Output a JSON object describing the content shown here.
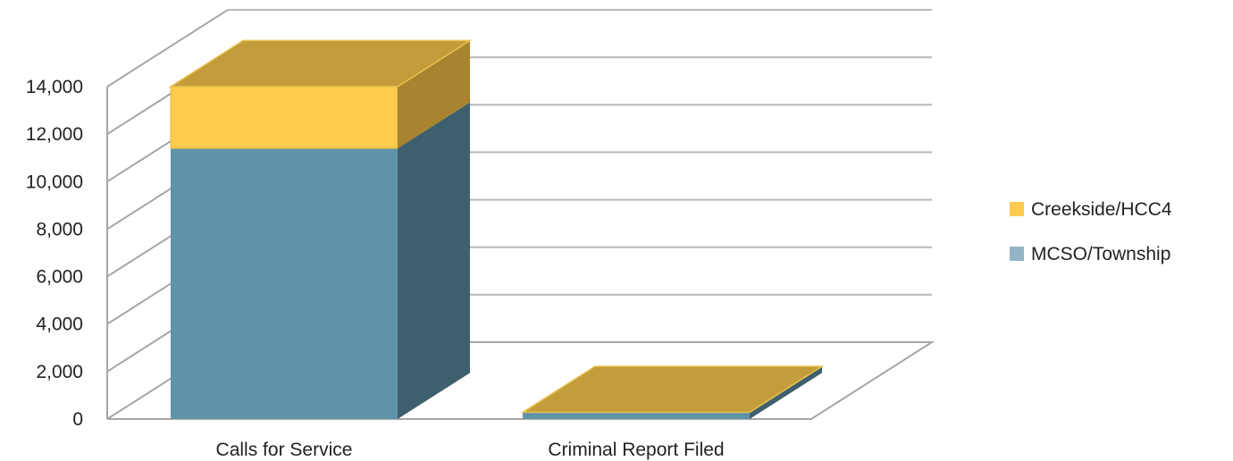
{
  "chart_data": {
    "type": "bar",
    "stacked": true,
    "three_d": true,
    "title": "",
    "xlabel": "",
    "ylabel": "",
    "categories": [
      "Calls for Service",
      "Criminal Report Filed"
    ],
    "series": [
      {
        "name": "MCSO/Township",
        "values": [
          11400,
          280
        ],
        "color": "#5f93a9",
        "side_color": "#3e5f6e",
        "top_color": "#7aa6b8",
        "legend_color": "#93b4c4"
      },
      {
        "name": "Creekside/HCC4",
        "values": [
          2600,
          0
        ],
        "color": "#fdcb4d",
        "side_color": "#a88430",
        "top_color": "#c59c3c",
        "legend_color": "#fdcb4d"
      }
    ],
    "ylim": [
      0,
      14000
    ],
    "yticks": [
      0,
      2000,
      4000,
      6000,
      8000,
      10000,
      12000,
      14000
    ],
    "ytick_labels": [
      "0",
      "2,000",
      "4,000",
      "6,000",
      "8,000",
      "10,000",
      "12,000",
      "14,000"
    ],
    "grid": true,
    "legend_position": "right"
  }
}
